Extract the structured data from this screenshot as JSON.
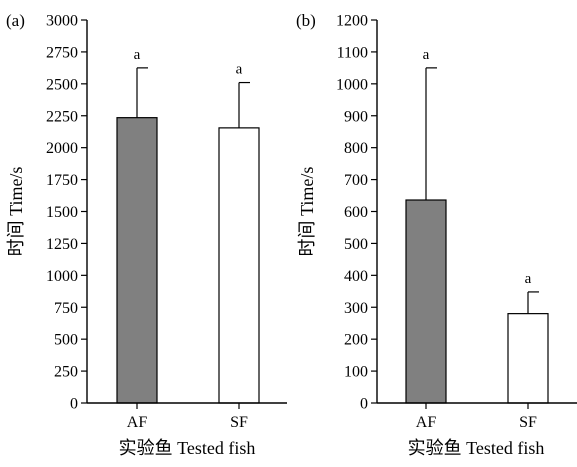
{
  "chart_data": [
    {
      "type": "bar",
      "panel_label": "(a)",
      "categories": [
        "AF",
        "SF"
      ],
      "values": [
        2235,
        2155
      ],
      "error_upper": [
        2625,
        2510
      ],
      "significance": [
        "a",
        "a"
      ],
      "bar_colors": [
        "#808080",
        "#ffffff"
      ],
      "xlabel": "实验鱼 Tested fish",
      "ylabel": "时间 Time/s",
      "ylim": [
        0,
        3000
      ],
      "yticks": [
        0,
        250,
        500,
        750,
        1000,
        1250,
        1500,
        1750,
        2000,
        2250,
        2500,
        2750,
        3000
      ],
      "grid": false
    },
    {
      "type": "bar",
      "panel_label": "(b)",
      "categories": [
        "AF",
        "SF"
      ],
      "values": [
        636,
        280
      ],
      "error_upper": [
        1050,
        348
      ],
      "significance": [
        "a",
        "a"
      ],
      "bar_colors": [
        "#808080",
        "#ffffff"
      ],
      "xlabel": "实验鱼 Tested fish",
      "ylabel": "时间 Time/s",
      "ylim": [
        0,
        1200
      ],
      "yticks": [
        0,
        100,
        200,
        300,
        400,
        500,
        600,
        700,
        800,
        900,
        1000,
        1100,
        1200
      ],
      "grid": false
    }
  ]
}
